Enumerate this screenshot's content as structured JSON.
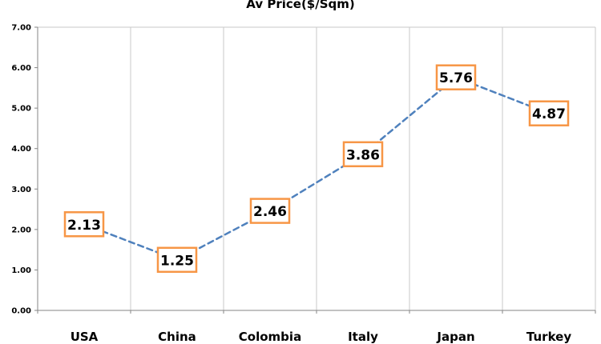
{
  "chart_data": {
    "type": "line",
    "title": "Av Price($/Sqm)",
    "categories": [
      "USA",
      "China",
      "Colombia",
      "Italy",
      "Japan",
      "Turkey"
    ],
    "series": [
      {
        "values": [
          2.13,
          1.25,
          2.46,
          3.86,
          5.76,
          4.87
        ]
      }
    ],
    "data_labels": [
      "2.13",
      "1.25",
      "2.46",
      "3.86",
      "5.76",
      "4.87"
    ],
    "y_ticks": [
      "0.00",
      "1.00",
      "2.00",
      "3.00",
      "4.00",
      "5.00",
      "6.00",
      "7.00"
    ],
    "ylim": [
      0,
      7
    ],
    "grid": "vertical-only",
    "legend": "none",
    "line_style": "dashed",
    "colors": {
      "line": "#4f81bd",
      "label_border": "#f79646",
      "grid": "#c8c8c8",
      "axis": "#868686"
    }
  }
}
